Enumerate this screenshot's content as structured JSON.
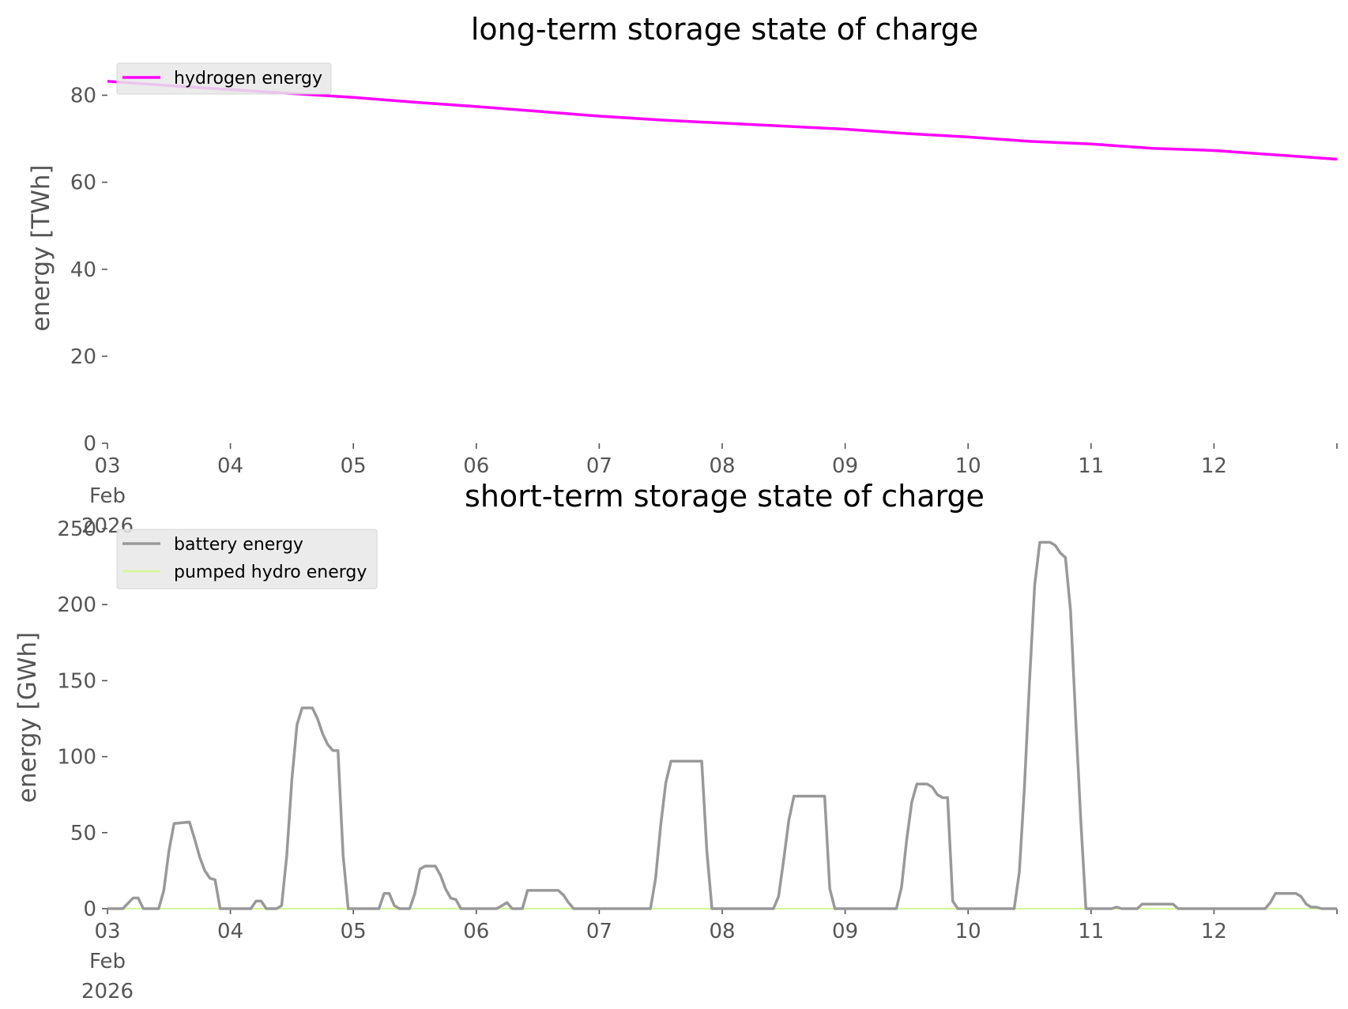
{
  "chart_data": [
    {
      "type": "line",
      "title": "long-term storage state of charge",
      "xlabel": "",
      "ylabel": "energy [TWh]",
      "xlim": [
        "2026-02-03 00:00",
        "2026-02-13 00:00"
      ],
      "ylim": [
        0,
        85
      ],
      "xticks": [
        {
          "date": "2026-02-03",
          "lines": [
            "03",
            "Feb",
            "2026"
          ]
        },
        {
          "date": "2026-02-04",
          "lines": [
            "04"
          ]
        },
        {
          "date": "2026-02-05",
          "lines": [
            "05"
          ]
        },
        {
          "date": "2026-02-06",
          "lines": [
            "06"
          ]
        },
        {
          "date": "2026-02-07",
          "lines": [
            "07"
          ]
        },
        {
          "date": "2026-02-08",
          "lines": [
            "08"
          ]
        },
        {
          "date": "2026-02-09",
          "lines": [
            "09"
          ]
        },
        {
          "date": "2026-02-10",
          "lines": [
            "10"
          ]
        },
        {
          "date": "2026-02-11",
          "lines": [
            "11"
          ]
        },
        {
          "date": "2026-02-12",
          "lines": [
            "12"
          ]
        }
      ],
      "yticks": [
        0,
        20,
        40,
        60,
        80
      ],
      "grid": false,
      "legend": "top-left",
      "series": [
        {
          "name": "hydrogen energy",
          "color": "#ff00ff",
          "points": [
            [
              "2026-02-03 00:00",
              83.2
            ],
            [
              "2026-02-03 12:00",
              82.2
            ],
            [
              "2026-02-04 00:00",
              81.3
            ],
            [
              "2026-02-04 12:00",
              80.4
            ],
            [
              "2026-02-05 00:00",
              79.5
            ],
            [
              "2026-02-05 12:00",
              78.4
            ],
            [
              "2026-02-06 00:00",
              77.4
            ],
            [
              "2026-02-06 12:00",
              76.3
            ],
            [
              "2026-02-07 00:00",
              75.2
            ],
            [
              "2026-02-07 12:00",
              74.3
            ],
            [
              "2026-02-08 00:00",
              73.6
            ],
            [
              "2026-02-08 12:00",
              72.9
            ],
            [
              "2026-02-09 00:00",
              72.2
            ],
            [
              "2026-02-09 12:00",
              71.2
            ],
            [
              "2026-02-10 00:00",
              70.4
            ],
            [
              "2026-02-10 12:00",
              69.4
            ],
            [
              "2026-02-11 00:00",
              68.8
            ],
            [
              "2026-02-11 12:00",
              67.8
            ],
            [
              "2026-02-12 00:00",
              67.3
            ],
            [
              "2026-02-12 12:00",
              66.3
            ],
            [
              "2026-02-13 00:00",
              65.3
            ]
          ]
        }
      ]
    },
    {
      "type": "line",
      "title": "short-term storage state of charge",
      "xlabel": "",
      "ylabel": "energy [GWh]",
      "xlim": [
        "2026-02-03 00:00",
        "2026-02-13 00:00"
      ],
      "ylim": [
        0,
        250
      ],
      "xticks": [
        {
          "date": "2026-02-03",
          "lines": [
            "03",
            "Feb",
            "2026"
          ]
        },
        {
          "date": "2026-02-04",
          "lines": [
            "04"
          ]
        },
        {
          "date": "2026-02-05",
          "lines": [
            "05"
          ]
        },
        {
          "date": "2026-02-06",
          "lines": [
            "06"
          ]
        },
        {
          "date": "2026-02-07",
          "lines": [
            "07"
          ]
        },
        {
          "date": "2026-02-08",
          "lines": [
            "08"
          ]
        },
        {
          "date": "2026-02-09",
          "lines": [
            "09"
          ]
        },
        {
          "date": "2026-02-10",
          "lines": [
            "10"
          ]
        },
        {
          "date": "2026-02-11",
          "lines": [
            "11"
          ]
        },
        {
          "date": "2026-02-12",
          "lines": [
            "12"
          ]
        }
      ],
      "yticks": [
        0,
        50,
        100,
        150,
        200,
        250
      ],
      "grid": false,
      "legend": "top-left",
      "series": [
        {
          "name": "battery energy",
          "color": "#999999",
          "points": [
            [
              "2026-02-03 00:00",
              0
            ],
            [
              "2026-02-03 03:00",
              0
            ],
            [
              "2026-02-03 05:00",
              7
            ],
            [
              "2026-02-03 06:00",
              7
            ],
            [
              "2026-02-03 07:00",
              0
            ],
            [
              "2026-02-03 10:00",
              0
            ],
            [
              "2026-02-03 11:00",
              12
            ],
            [
              "2026-02-03 12:00",
              38
            ],
            [
              "2026-02-03 13:00",
              56
            ],
            [
              "2026-02-03 16:00",
              57
            ],
            [
              "2026-02-03 17:00",
              46
            ],
            [
              "2026-02-03 18:00",
              34
            ],
            [
              "2026-02-03 19:00",
              25
            ],
            [
              "2026-02-03 20:00",
              20
            ],
            [
              "2026-02-03 21:00",
              19
            ],
            [
              "2026-02-03 22:00",
              0
            ],
            [
              "2026-02-04 04:00",
              0
            ],
            [
              "2026-02-04 05:00",
              5
            ],
            [
              "2026-02-04 06:00",
              5
            ],
            [
              "2026-02-04 07:00",
              0
            ],
            [
              "2026-02-04 09:00",
              0
            ],
            [
              "2026-02-04 10:00",
              2
            ],
            [
              "2026-02-04 11:00",
              35
            ],
            [
              "2026-02-04 12:00",
              85
            ],
            [
              "2026-02-04 13:00",
              121
            ],
            [
              "2026-02-04 14:00",
              132
            ],
            [
              "2026-02-04 16:00",
              132
            ],
            [
              "2026-02-04 17:00",
              125
            ],
            [
              "2026-02-04 18:00",
              115
            ],
            [
              "2026-02-04 19:00",
              108
            ],
            [
              "2026-02-04 20:00",
              104
            ],
            [
              "2026-02-04 21:00",
              104
            ],
            [
              "2026-02-04 22:00",
              35
            ],
            [
              "2026-02-04 23:00",
              0
            ],
            [
              "2026-02-05 05:00",
              0
            ],
            [
              "2026-02-05 06:00",
              10
            ],
            [
              "2026-02-05 07:00",
              10
            ],
            [
              "2026-02-05 08:00",
              2
            ],
            [
              "2026-02-05 09:00",
              0
            ],
            [
              "2026-02-05 11:00",
              0
            ],
            [
              "2026-02-05 12:00",
              10
            ],
            [
              "2026-02-05 13:00",
              26
            ],
            [
              "2026-02-05 14:00",
              28
            ],
            [
              "2026-02-05 16:00",
              28
            ],
            [
              "2026-02-05 17:00",
              22
            ],
            [
              "2026-02-05 18:00",
              13
            ],
            [
              "2026-02-05 19:00",
              7
            ],
            [
              "2026-02-05 20:00",
              6
            ],
            [
              "2026-02-05 21:00",
              0
            ],
            [
              "2026-02-06 04:00",
              0
            ],
            [
              "2026-02-06 06:00",
              4
            ],
            [
              "2026-02-06 07:00",
              0
            ],
            [
              "2026-02-06 09:00",
              0
            ],
            [
              "2026-02-06 10:00",
              12
            ],
            [
              "2026-02-06 16:00",
              12
            ],
            [
              "2026-02-06 17:00",
              9
            ],
            [
              "2026-02-06 18:00",
              4
            ],
            [
              "2026-02-06 19:00",
              0
            ],
            [
              "2026-02-07 10:00",
              0
            ],
            [
              "2026-02-07 11:00",
              20
            ],
            [
              "2026-02-07 12:00",
              55
            ],
            [
              "2026-02-07 13:00",
              83
            ],
            [
              "2026-02-07 14:00",
              97
            ],
            [
              "2026-02-07 20:00",
              97
            ],
            [
              "2026-02-07 21:00",
              38
            ],
            [
              "2026-02-07 22:00",
              0
            ],
            [
              "2026-02-08 10:00",
              0
            ],
            [
              "2026-02-08 11:00",
              8
            ],
            [
              "2026-02-08 12:00",
              32
            ],
            [
              "2026-02-08 13:00",
              58
            ],
            [
              "2026-02-08 14:00",
              74
            ],
            [
              "2026-02-08 20:00",
              74
            ],
            [
              "2026-02-08 21:00",
              13
            ],
            [
              "2026-02-08 22:00",
              0
            ],
            [
              "2026-02-09 10:00",
              0
            ],
            [
              "2026-02-09 11:00",
              14
            ],
            [
              "2026-02-09 12:00",
              45
            ],
            [
              "2026-02-09 13:00",
              70
            ],
            [
              "2026-02-09 14:00",
              82
            ],
            [
              "2026-02-09 16:00",
              82
            ],
            [
              "2026-02-09 17:00",
              80
            ],
            [
              "2026-02-09 18:00",
              75
            ],
            [
              "2026-02-09 19:00",
              73
            ],
            [
              "2026-02-09 20:00",
              73
            ],
            [
              "2026-02-09 21:00",
              5
            ],
            [
              "2026-02-09 22:00",
              0
            ],
            [
              "2026-02-10 09:00",
              0
            ],
            [
              "2026-02-10 10:00",
              24
            ],
            [
              "2026-02-10 11:00",
              80
            ],
            [
              "2026-02-10 12:00",
              150
            ],
            [
              "2026-02-10 13:00",
              213
            ],
            [
              "2026-02-10 14:00",
              241
            ],
            [
              "2026-02-10 16:00",
              241
            ],
            [
              "2026-02-10 17:00",
              239
            ],
            [
              "2026-02-10 18:00",
              234
            ],
            [
              "2026-02-10 19:00",
              231
            ],
            [
              "2026-02-10 20:00",
              196
            ],
            [
              "2026-02-10 21:00",
              125
            ],
            [
              "2026-02-10 22:00",
              58
            ],
            [
              "2026-02-10 23:00",
              0
            ],
            [
              "2026-02-11 04:00",
              0
            ],
            [
              "2026-02-11 05:00",
              1
            ],
            [
              "2026-02-11 06:00",
              0
            ],
            [
              "2026-02-11 09:00",
              0
            ],
            [
              "2026-02-11 10:00",
              3
            ],
            [
              "2026-02-11 16:00",
              3
            ],
            [
              "2026-02-11 17:00",
              0
            ],
            [
              "2026-02-12 10:00",
              0
            ],
            [
              "2026-02-12 11:00",
              4
            ],
            [
              "2026-02-12 12:00",
              10
            ],
            [
              "2026-02-12 16:00",
              10
            ],
            [
              "2026-02-12 17:00",
              8
            ],
            [
              "2026-02-12 18:00",
              3
            ],
            [
              "2026-02-12 19:00",
              1
            ],
            [
              "2026-02-12 20:00",
              1
            ],
            [
              "2026-02-12 21:00",
              0
            ],
            [
              "2026-02-13 00:00",
              0
            ]
          ]
        },
        {
          "name": "pumped hydro energy",
          "color": "#d9f7a1",
          "points": [
            [
              "2026-02-03 00:00",
              0
            ],
            [
              "2026-02-13 00:00",
              0
            ]
          ]
        }
      ]
    }
  ]
}
